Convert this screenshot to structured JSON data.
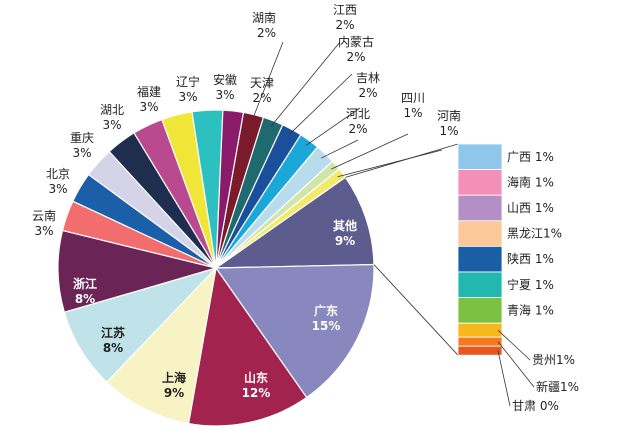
{
  "chart_data": {
    "type": "pie",
    "title": "",
    "slices": [
      {
        "name": "湖南",
        "value": 2,
        "label": "湖南\n2%",
        "color": "#7a1a2a"
      },
      {
        "name": "江西",
        "value": 2,
        "label": "江西\n2%",
        "color": "#1e6a6e"
      },
      {
        "name": "内蒙古",
        "value": 2,
        "label": "内蒙古\n2%",
        "color": "#1a4f9c"
      },
      {
        "name": "吉林",
        "value": 2,
        "label": "吉林\n2%",
        "color": "#1ba8d8"
      },
      {
        "name": "河北",
        "value": 2,
        "label": "河北\n2%",
        "color": "#b9dcec"
      },
      {
        "name": "四川",
        "value": 1,
        "label": "四川\n1%",
        "color": "#cfe6a8"
      },
      {
        "name": "河南",
        "value": 1,
        "label": "河南\n1%",
        "color": "#f3e96a"
      },
      {
        "name": "其他",
        "value": 9,
        "label": "其他\n9%",
        "color": "#5c5c8e"
      },
      {
        "name": "广东",
        "value": 15,
        "label": "广东\n15%",
        "color": "#8888bf"
      },
      {
        "name": "山东",
        "value": 12,
        "label": "山东\n12%",
        "color": "#a3234f"
      },
      {
        "name": "上海",
        "value": 9,
        "label": "上海\n9%",
        "color": "#f8f3c4"
      },
      {
        "name": "江苏",
        "value": 8,
        "label": "江苏\n8%",
        "color": "#bfe3e8"
      },
      {
        "name": "浙江",
        "value": 8,
        "label": "浙江\n8%",
        "color": "#6b2456"
      },
      {
        "name": "云南",
        "value": 3,
        "label": "云南\n3%",
        "color": "#f26d6d"
      },
      {
        "name": "北京",
        "value": 3,
        "label": "北京\n3%",
        "color": "#1a5fa8"
      },
      {
        "name": "重庆",
        "value": 3,
        "label": "重庆\n3%",
        "color": "#d4d3e8"
      },
      {
        "name": "湖北",
        "value": 3,
        "label": "湖北\n3%",
        "color": "#1f2d4f"
      },
      {
        "name": "福建",
        "value": 3,
        "label": "福建\n3%",
        "color": "#b94a8f"
      },
      {
        "name": "辽宁",
        "value": 3,
        "label": "辽宁\n3%",
        "color": "#f0e638"
      },
      {
        "name": "安徽",
        "value": 3,
        "label": "安徽\n3%",
        "color": "#2cc0c0"
      },
      {
        "name": "天津",
        "value": 2,
        "label": "天津\n2%",
        "color": "#8a1a6a"
      }
    ],
    "other_breakdown": [
      {
        "name": "广西",
        "value": 1,
        "label": "广西 1%",
        "color": "#8ec6ec"
      },
      {
        "name": "海南",
        "value": 1,
        "label": "海南 1%",
        "color": "#f48fb8"
      },
      {
        "name": "山西",
        "value": 1,
        "label": "山西 1%",
        "color": "#b48ec6"
      },
      {
        "name": "黑龙江",
        "value": 1,
        "label": "黑龙江1%",
        "color": "#fbc89a"
      },
      {
        "name": "陕西",
        "value": 1,
        "label": "陕西 1%",
        "color": "#1a5ea6"
      },
      {
        "name": "宁夏",
        "value": 1,
        "label": "宁夏 1%",
        "color": "#22b8b0"
      },
      {
        "name": "青海",
        "value": 1,
        "label": "青海 1%",
        "color": "#7cc242"
      },
      {
        "name": "贵州",
        "value": 1,
        "label": "贵州1%",
        "color": "#f7b81e"
      },
      {
        "name": "新疆",
        "value": 1,
        "label": "新疆1%",
        "color": "#f47a20"
      },
      {
        "name": "甘肃",
        "value": 0,
        "label": "甘肃 0%",
        "color": "#e8551e"
      }
    ]
  }
}
